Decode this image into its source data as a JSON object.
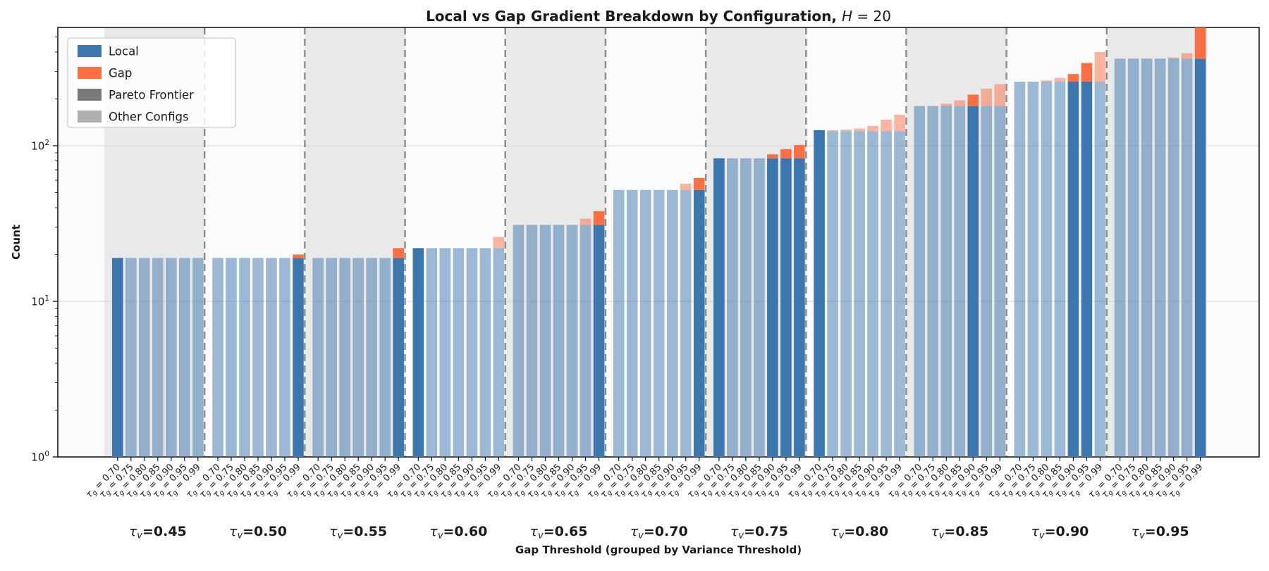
{
  "chart_data": {
    "type": "bar",
    "stacked": true,
    "yscale": "log",
    "title": {
      "main": "Local vs Gap Gradient Breakdown by Configuration, ",
      "math_var": "H",
      "math_rest": " = 20"
    },
    "ylabel": "Count",
    "xlabel": "Gap Threshold (grouped by Variance Threshold)",
    "ylim": [
      1,
      575
    ],
    "ytick_values": [
      1,
      10,
      100
    ],
    "ytick_labels": [
      {
        "base": "10",
        "exp": "0"
      },
      {
        "base": "10",
        "exp": "1"
      },
      {
        "base": "10",
        "exp": "2"
      }
    ],
    "grid": "major-y",
    "legend": {
      "position": "upper-left",
      "items": [
        {
          "label": "Local",
          "color": "#3b76af"
        },
        {
          "label": "Gap",
          "color": "#fc6f43"
        },
        {
          "label": "Pareto Frontier",
          "color": "#7a7a7a"
        },
        {
          "label": "Other Configs",
          "color": "#b0b0b0"
        }
      ]
    },
    "tick_symbol": {
      "sym": "τ",
      "sub": "g",
      "eq": " = "
    },
    "group_symbol": {
      "sym": "τ",
      "sub": "v",
      "eq": "="
    },
    "gap_thresholds": [
      "0.70",
      "0.75",
      "0.80",
      "0.85",
      "0.90",
      "0.95",
      "0.99"
    ],
    "groups": [
      {
        "variance_threshold": "0.45",
        "shaded": true,
        "local": [
          19,
          19,
          19,
          19,
          19,
          19,
          19
        ],
        "gap": [
          0,
          0,
          0,
          0,
          0,
          0,
          0
        ],
        "pareto": [
          true,
          false,
          false,
          false,
          false,
          false,
          false
        ]
      },
      {
        "variance_threshold": "0.50",
        "shaded": false,
        "local": [
          19,
          19,
          19,
          19,
          19,
          19,
          19
        ],
        "gap": [
          0,
          0,
          0,
          0,
          0,
          0,
          1
        ],
        "pareto": [
          false,
          false,
          false,
          false,
          false,
          false,
          true
        ]
      },
      {
        "variance_threshold": "0.55",
        "shaded": true,
        "local": [
          19,
          19,
          19,
          19,
          19,
          19,
          19
        ],
        "gap": [
          0,
          0,
          0,
          0,
          0,
          0,
          3
        ],
        "pareto": [
          false,
          false,
          false,
          false,
          false,
          false,
          true
        ]
      },
      {
        "variance_threshold": "0.60",
        "shaded": false,
        "local": [
          22,
          22,
          22,
          22,
          22,
          22,
          22
        ],
        "gap": [
          0,
          0,
          0,
          0,
          0,
          0,
          4
        ],
        "pareto": [
          true,
          false,
          false,
          false,
          false,
          false,
          false
        ]
      },
      {
        "variance_threshold": "0.65",
        "shaded": true,
        "local": [
          31,
          31,
          31,
          31,
          31,
          31,
          31
        ],
        "gap": [
          0,
          0,
          0,
          0,
          0,
          3,
          7
        ],
        "pareto": [
          false,
          false,
          false,
          false,
          false,
          false,
          true
        ]
      },
      {
        "variance_threshold": "0.70",
        "shaded": false,
        "local": [
          52,
          52,
          52,
          52,
          52,
          52,
          52
        ],
        "gap": [
          0,
          0,
          0,
          0,
          0,
          5,
          10
        ],
        "pareto": [
          false,
          false,
          false,
          false,
          false,
          false,
          true
        ]
      },
      {
        "variance_threshold": "0.75",
        "shaded": true,
        "local": [
          83,
          83,
          83,
          83,
          83,
          83,
          83
        ],
        "gap": [
          0,
          0,
          0,
          0,
          5,
          12,
          18
        ],
        "pareto": [
          true,
          false,
          false,
          false,
          true,
          true,
          true
        ]
      },
      {
        "variance_threshold": "0.80",
        "shaded": false,
        "local": [
          126,
          124,
          124,
          124,
          124,
          124,
          124
        ],
        "gap": [
          0,
          2,
          3,
          5,
          10,
          23,
          34
        ],
        "pareto": [
          true,
          false,
          false,
          false,
          false,
          false,
          false
        ]
      },
      {
        "variance_threshold": "0.85",
        "shaded": true,
        "local": [
          180,
          180,
          180,
          180,
          180,
          180,
          180
        ],
        "gap": [
          0,
          0,
          6,
          16,
          33,
          53,
          69
        ],
        "pareto": [
          false,
          false,
          false,
          false,
          true,
          false,
          false
        ]
      },
      {
        "variance_threshold": "0.90",
        "shaded": false,
        "local": [
          258,
          258,
          258,
          258,
          258,
          258,
          258
        ],
        "gap": [
          0,
          0,
          5,
          15,
          31,
          82,
          142
        ],
        "pareto": [
          false,
          false,
          false,
          false,
          true,
          true,
          false
        ]
      },
      {
        "variance_threshold": "0.95",
        "shaded": true,
        "local": [
          363,
          363,
          363,
          363,
          363,
          363,
          363
        ],
        "gap": [
          0,
          0,
          0,
          0,
          6,
          30,
          260
        ],
        "pareto": [
          false,
          false,
          false,
          false,
          false,
          false,
          true
        ]
      }
    ],
    "colors": {
      "local": "#3b76af",
      "gap": "#fc6f43",
      "other_alpha": 0.5,
      "shade_band": "#e9e9e9",
      "axes_bg": "#fbfbfb",
      "grid_line": "#d4d4d4",
      "separator": "#8f8f8f",
      "spine": "#1a1a1a"
    }
  }
}
